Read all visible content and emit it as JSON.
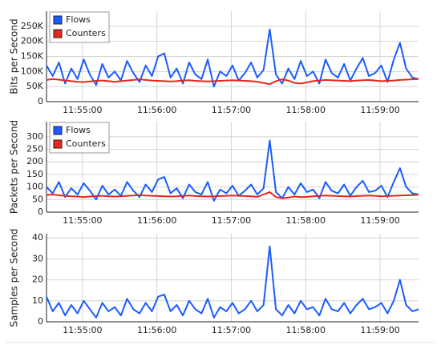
{
  "chart_data": [
    {
      "type": "line",
      "ylabel": "Bits per Second",
      "legend": "upper left",
      "grid": true,
      "xlim": [
        "11:54:31",
        "11:59:31"
      ],
      "xticks": [
        "11:55:00",
        "11:56:00",
        "11:57:00",
        "11:58:00",
        "11:59:00"
      ],
      "ylim": [
        0,
        300000
      ],
      "yticks": [
        0,
        {
          "value": 50000,
          "label": "50K"
        },
        {
          "value": 100000,
          "label": "100K"
        },
        {
          "value": 150000,
          "label": "150K"
        },
        {
          "value": 200000,
          "label": "200K"
        },
        {
          "value": 250000,
          "label": "250K"
        }
      ],
      "x": [
        "11:54:31",
        "11:54:36",
        "11:54:41",
        "11:54:46",
        "11:54:51",
        "11:54:56",
        "11:55:01",
        "11:55:06",
        "11:55:11",
        "11:55:16",
        "11:55:21",
        "11:55:26",
        "11:55:31",
        "11:55:36",
        "11:55:41",
        "11:55:46",
        "11:55:51",
        "11:55:56",
        "11:56:01",
        "11:56:06",
        "11:56:11",
        "11:56:16",
        "11:56:21",
        "11:56:26",
        "11:56:31",
        "11:56:36",
        "11:56:41",
        "11:56:46",
        "11:56:51",
        "11:56:56",
        "11:57:01",
        "11:57:06",
        "11:57:11",
        "11:57:16",
        "11:57:21",
        "11:57:26",
        "11:57:31",
        "11:57:36",
        "11:57:41",
        "11:57:46",
        "11:57:51",
        "11:57:56",
        "11:58:01",
        "11:58:06",
        "11:58:11",
        "11:58:16",
        "11:58:21",
        "11:58:26",
        "11:58:31",
        "11:58:36",
        "11:58:41",
        "11:58:46",
        "11:58:51",
        "11:58:56",
        "11:59:01",
        "11:59:06",
        "11:59:11",
        "11:59:16",
        "11:59:21",
        "11:59:26",
        "11:59:31"
      ],
      "series": [
        {
          "name": "Flows",
          "color": "#1a5cff",
          "values": [
            120000,
            85000,
            130000,
            60000,
            110000,
            75000,
            140000,
            90000,
            55000,
            125000,
            80000,
            100000,
            70000,
            135000,
            95000,
            65000,
            120000,
            85000,
            150000,
            160000,
            80000,
            110000,
            60000,
            130000,
            90000,
            75000,
            140000,
            50000,
            100000,
            85000,
            120000,
            70000,
            95000,
            130000,
            80000,
            105000,
            240000,
            90000,
            60000,
            110000,
            75000,
            135000,
            85000,
            100000,
            60000,
            140000,
            95000,
            80000,
            125000,
            70000,
            110000,
            145000,
            85000,
            95000,
            120000,
            65000,
            140000,
            195000,
            110000,
            80000,
            75000
          ]
        },
        {
          "name": "Counters",
          "color": "#e8261c",
          "values": [
            72000,
            75000,
            73000,
            70000,
            68000,
            66000,
            65000,
            67000,
            69000,
            70000,
            68000,
            66000,
            68000,
            70000,
            72000,
            74000,
            72000,
            70000,
            69000,
            68000,
            67000,
            68000,
            70000,
            71000,
            69000,
            68000,
            67000,
            68000,
            69000,
            70000,
            71000,
            70000,
            69000,
            68000,
            66000,
            62000,
            58000,
            68000,
            74000,
            70000,
            62000,
            60000,
            64000,
            68000,
            70000,
            72000,
            71000,
            70000,
            69000,
            68000,
            70000,
            71000,
            72000,
            70000,
            68000,
            69000,
            70000,
            72000,
            73000,
            74000,
            75000
          ]
        }
      ]
    },
    {
      "type": "line",
      "ylabel": "Packets per Second",
      "legend": "upper left",
      "grid": true,
      "xlim": [
        "11:54:31",
        "11:59:31"
      ],
      "xticks": [
        "11:55:00",
        "11:56:00",
        "11:57:00",
        "11:58:00",
        "11:59:00"
      ],
      "ylim": [
        0,
        360
      ],
      "yticks": [
        0,
        50,
        100,
        150,
        200,
        250,
        300
      ],
      "x": [
        "11:54:31",
        "11:54:36",
        "11:54:41",
        "11:54:46",
        "11:54:51",
        "11:54:56",
        "11:55:01",
        "11:55:06",
        "11:55:11",
        "11:55:16",
        "11:55:21",
        "11:55:26",
        "11:55:31",
        "11:55:36",
        "11:55:41",
        "11:55:46",
        "11:55:51",
        "11:55:56",
        "11:56:01",
        "11:56:06",
        "11:56:11",
        "11:56:16",
        "11:56:21",
        "11:56:26",
        "11:56:31",
        "11:56:36",
        "11:56:41",
        "11:56:46",
        "11:56:51",
        "11:56:56",
        "11:57:01",
        "11:57:06",
        "11:57:11",
        "11:57:16",
        "11:57:21",
        "11:57:26",
        "11:57:31",
        "11:57:36",
        "11:57:41",
        "11:57:46",
        "11:57:51",
        "11:57:56",
        "11:58:01",
        "11:58:06",
        "11:58:11",
        "11:58:16",
        "11:58:21",
        "11:58:26",
        "11:58:31",
        "11:58:36",
        "11:58:41",
        "11:58:46",
        "11:58:51",
        "11:58:56",
        "11:59:01",
        "11:59:06",
        "11:59:11",
        "11:59:16",
        "11:59:21",
        "11:59:26",
        "11:59:31"
      ],
      "series": [
        {
          "name": "Flows",
          "color": "#1a5cff",
          "values": [
            100,
            75,
            120,
            60,
            95,
            70,
            115,
            85,
            50,
            105,
            70,
            90,
            65,
            120,
            85,
            60,
            110,
            80,
            130,
            140,
            75,
            95,
            55,
            110,
            80,
            70,
            120,
            45,
            90,
            75,
            105,
            65,
            85,
            110,
            70,
            95,
            285,
            80,
            55,
            100,
            70,
            115,
            80,
            90,
            55,
            120,
            85,
            75,
            110,
            65,
            100,
            125,
            80,
            85,
            105,
            60,
            120,
            175,
            100,
            75,
            70
          ]
        },
        {
          "name": "Counters",
          "color": "#e8261c",
          "values": [
            68,
            70,
            67,
            65,
            63,
            62,
            60,
            62,
            64,
            65,
            63,
            62,
            63,
            65,
            66,
            68,
            66,
            65,
            64,
            63,
            62,
            63,
            65,
            66,
            64,
            63,
            62,
            63,
            64,
            65,
            66,
            65,
            64,
            63,
            61,
            70,
            80,
            60,
            55,
            58,
            62,
            60,
            61,
            63,
            65,
            66,
            65,
            64,
            63,
            62,
            64,
            65,
            66,
            65,
            63,
            64,
            65,
            66,
            67,
            68,
            69
          ]
        }
      ]
    },
    {
      "type": "line",
      "ylabel": "Samples per Second",
      "grid": true,
      "xlim": [
        "11:54:31",
        "11:59:31"
      ],
      "xticks": [
        "11:55:00",
        "11:56:00",
        "11:57:00",
        "11:58:00",
        "11:59:00"
      ],
      "ylim": [
        0,
        42
      ],
      "yticks": [
        0,
        10,
        20,
        30,
        40
      ],
      "x": [
        "11:54:31",
        "11:54:36",
        "11:54:41",
        "11:54:46",
        "11:54:51",
        "11:54:56",
        "11:55:01",
        "11:55:06",
        "11:55:11",
        "11:55:16",
        "11:55:21",
        "11:55:26",
        "11:55:31",
        "11:55:36",
        "11:55:41",
        "11:55:46",
        "11:55:51",
        "11:55:56",
        "11:56:01",
        "11:56:06",
        "11:56:11",
        "11:56:16",
        "11:56:21",
        "11:56:26",
        "11:56:31",
        "11:56:36",
        "11:56:41",
        "11:56:46",
        "11:56:51",
        "11:56:56",
        "11:57:01",
        "11:57:06",
        "11:57:11",
        "11:57:16",
        "11:57:21",
        "11:57:26",
        "11:57:31",
        "11:57:36",
        "11:57:41",
        "11:57:46",
        "11:57:51",
        "11:57:56",
        "11:58:01",
        "11:58:06",
        "11:58:11",
        "11:58:16",
        "11:58:21",
        "11:58:26",
        "11:58:31",
        "11:58:36",
        "11:58:41",
        "11:58:46",
        "11:58:51",
        "11:58:56",
        "11:59:01",
        "11:59:06",
        "11:59:11",
        "11:59:16",
        "11:59:21",
        "11:59:26",
        "11:59:31"
      ],
      "series": [
        {
          "color": "#1a5cff",
          "values": [
            12,
            5,
            9,
            3,
            8,
            4,
            10,
            6,
            2,
            9,
            5,
            7,
            3,
            11,
            6,
            4,
            9,
            5,
            12,
            13,
            5,
            8,
            3,
            10,
            6,
            4,
            11,
            2,
            7,
            5,
            9,
            4,
            6,
            10,
            5,
            8,
            36,
            6,
            3,
            8,
            4,
            10,
            6,
            7,
            3,
            11,
            6,
            5,
            9,
            4,
            8,
            11,
            6,
            7,
            9,
            4,
            10,
            20,
            8,
            5,
            6
          ]
        }
      ]
    }
  ]
}
